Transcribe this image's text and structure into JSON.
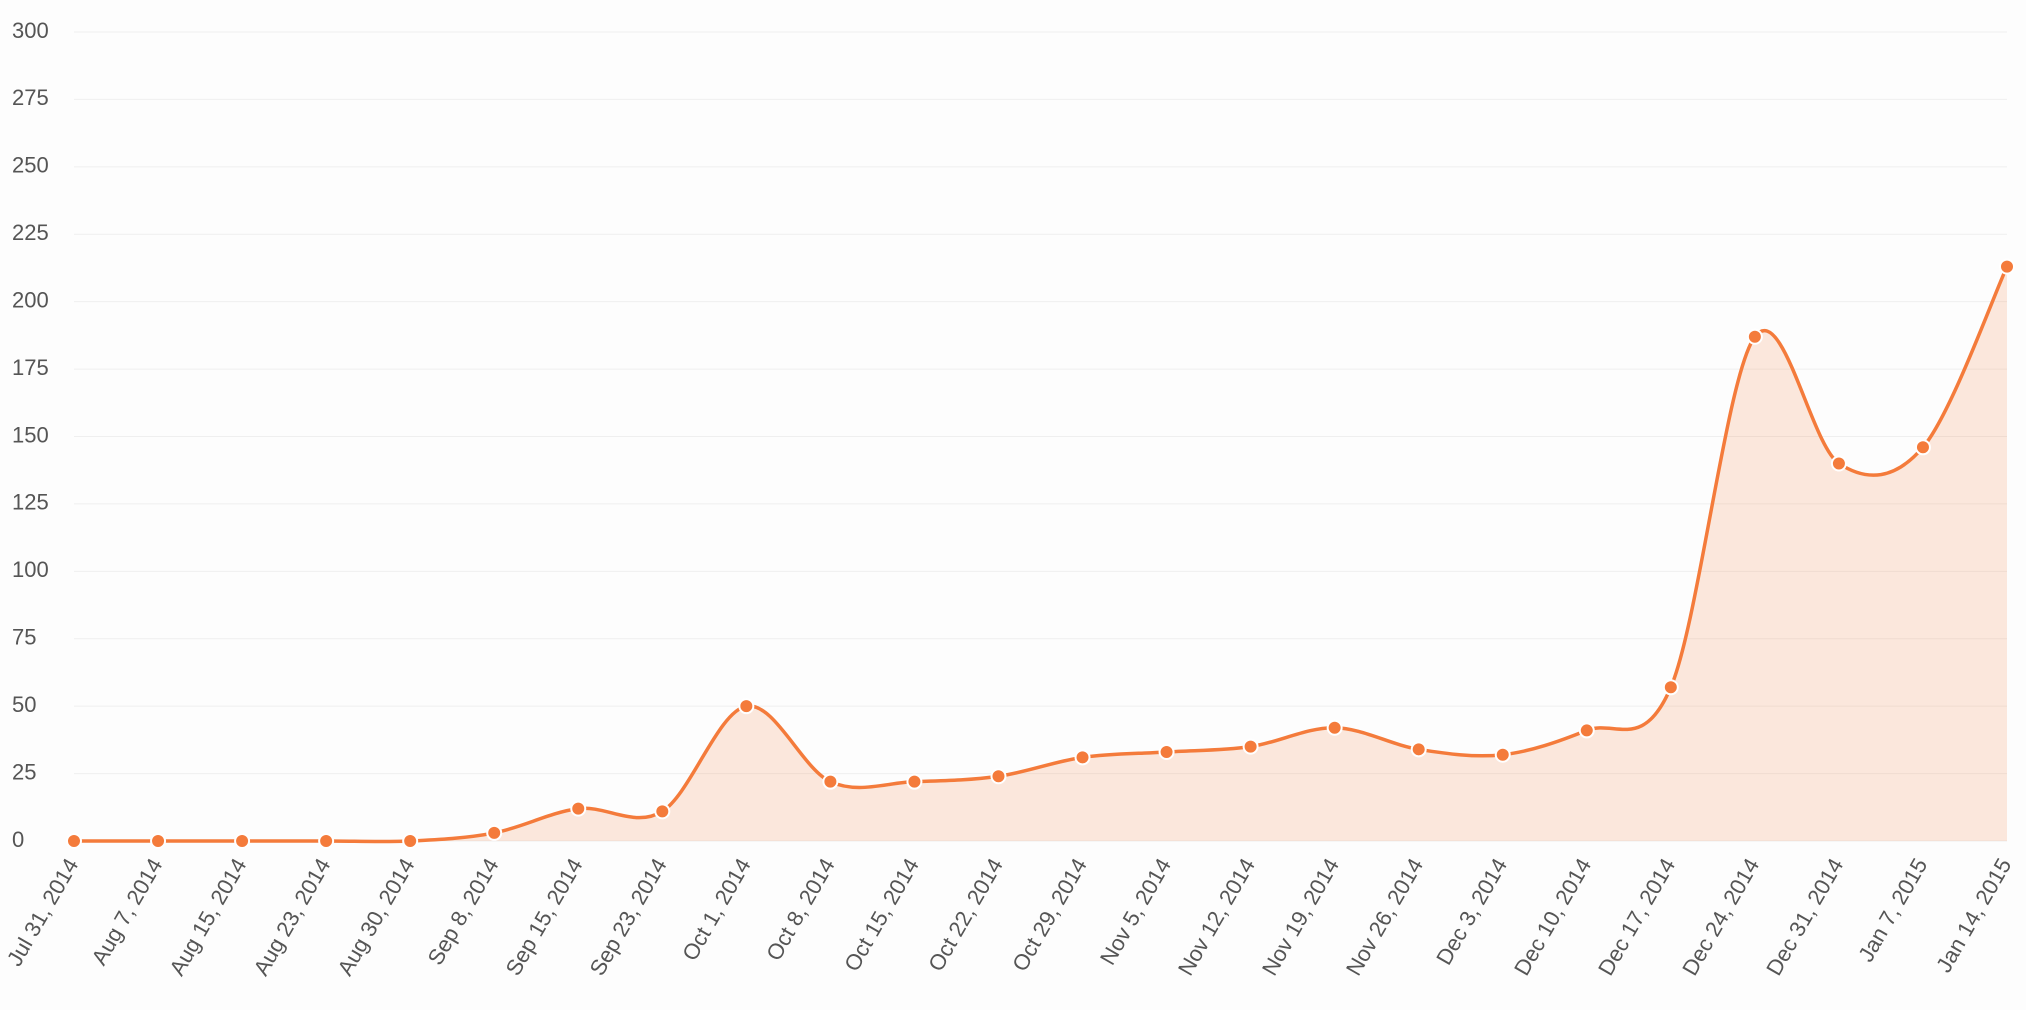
{
  "chart_data": {
    "type": "area",
    "categories": [
      "Jul 31, 2014",
      "Aug 7, 2014",
      "Aug 15, 2014",
      "Aug 23, 2014",
      "Aug 30, 2014",
      "Sep 8, 2014",
      "Sep 15, 2014",
      "Sep 23, 2014",
      "Oct 1, 2014",
      "Oct 8, 2014",
      "Oct 15, 2014",
      "Oct 22, 2014",
      "Oct 29, 2014",
      "Nov 5, 2014",
      "Nov 12, 2014",
      "Nov 19, 2014",
      "Nov 26, 2014",
      "Dec 3, 2014",
      "Dec 10, 2014",
      "Dec 17, 2014",
      "Dec 24, 2014",
      "Dec 31, 2014",
      "Jan 7, 2015",
      "Jan 14, 2015"
    ],
    "values": [
      0,
      0,
      0,
      0,
      0,
      3,
      12,
      11,
      50,
      22,
      22,
      24,
      31,
      33,
      35,
      42,
      34,
      32,
      41,
      57,
      187,
      140,
      146,
      213
    ],
    "color": "#f47b3b",
    "ylim": [
      0,
      300
    ],
    "yticks": [
      0,
      25,
      50,
      75,
      100,
      125,
      150,
      175,
      200,
      225,
      250,
      275,
      300
    ],
    "grid": true
  }
}
